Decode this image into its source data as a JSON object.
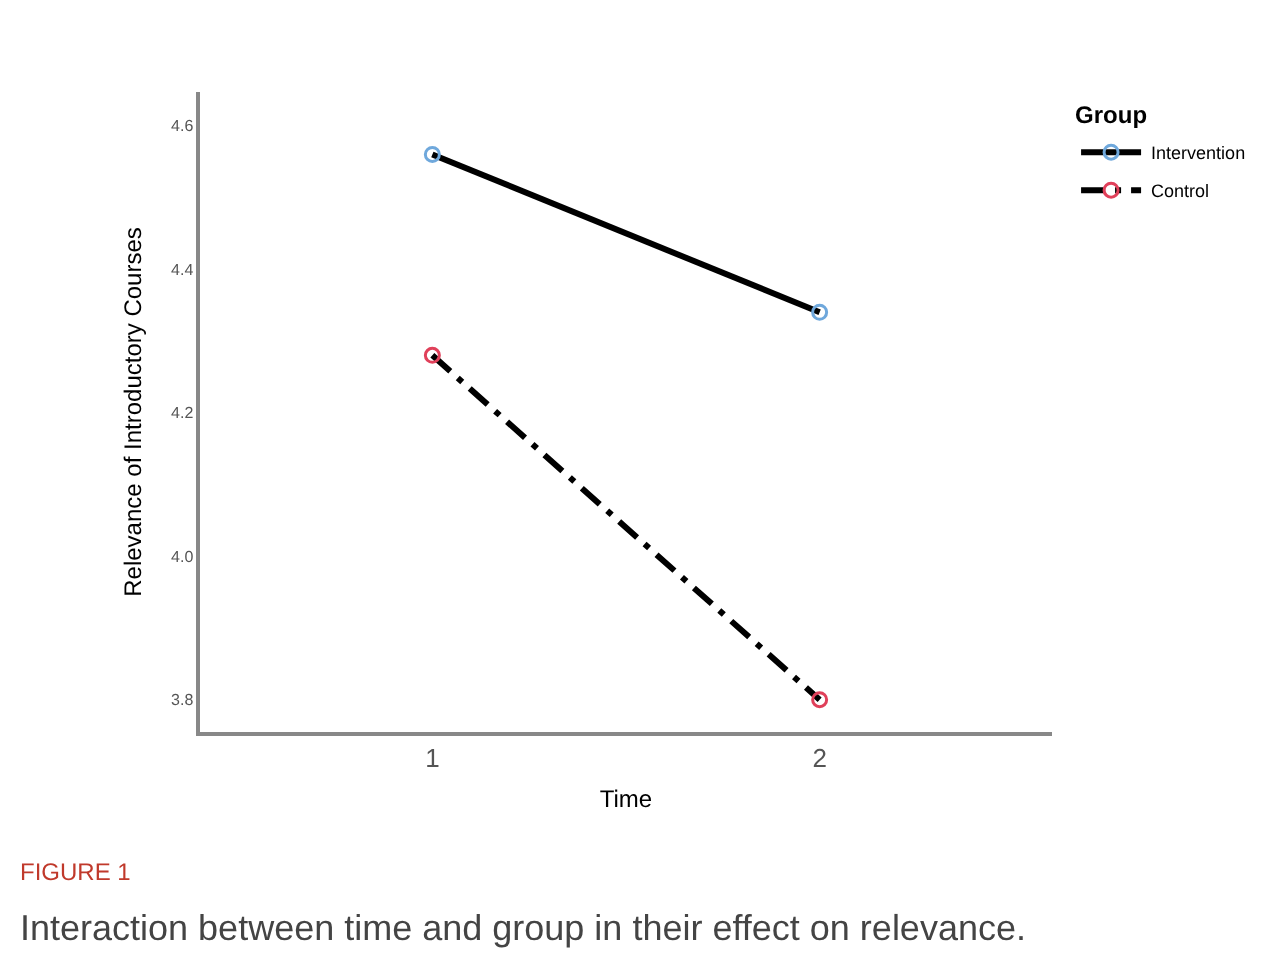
{
  "chart_data": {
    "type": "line",
    "xlabel": "Time",
    "ylabel": "Relevance of Introductory Courses",
    "legend_title": "Group",
    "legend": "top right",
    "x": [
      1,
      2
    ],
    "xlim": [
      0.4,
      2.6
    ],
    "xticks": [
      1,
      2
    ],
    "ylim": [
      3.755,
      4.647
    ],
    "yticks": [
      {
        "value": 3.8,
        "label": "3.8"
      },
      {
        "value": 4.0,
        "label": "4.0"
      },
      {
        "value": 4.2,
        "label": "4.2"
      },
      {
        "value": 4.4,
        "label": "4.4"
      },
      {
        "value": 4.6,
        "label": "4.6"
      }
    ],
    "marker": "circle",
    "series": [
      {
        "name": "Intervention",
        "color": "#000000",
        "colors": [
          "#6fa8dc",
          "#6fa8dc"
        ],
        "line_style": "solid",
        "values": [
          4.56,
          4.34
        ]
      },
      {
        "name": "Control",
        "color": "#000000",
        "colors": [
          "#e0405a",
          "#e0405a"
        ],
        "line_style": "dashed",
        "values": [
          4.28,
          3.8
        ]
      }
    ],
    "annotations": [
      "FIGURE 1",
      "Interaction between time and group in their effect on relevance."
    ]
  }
}
